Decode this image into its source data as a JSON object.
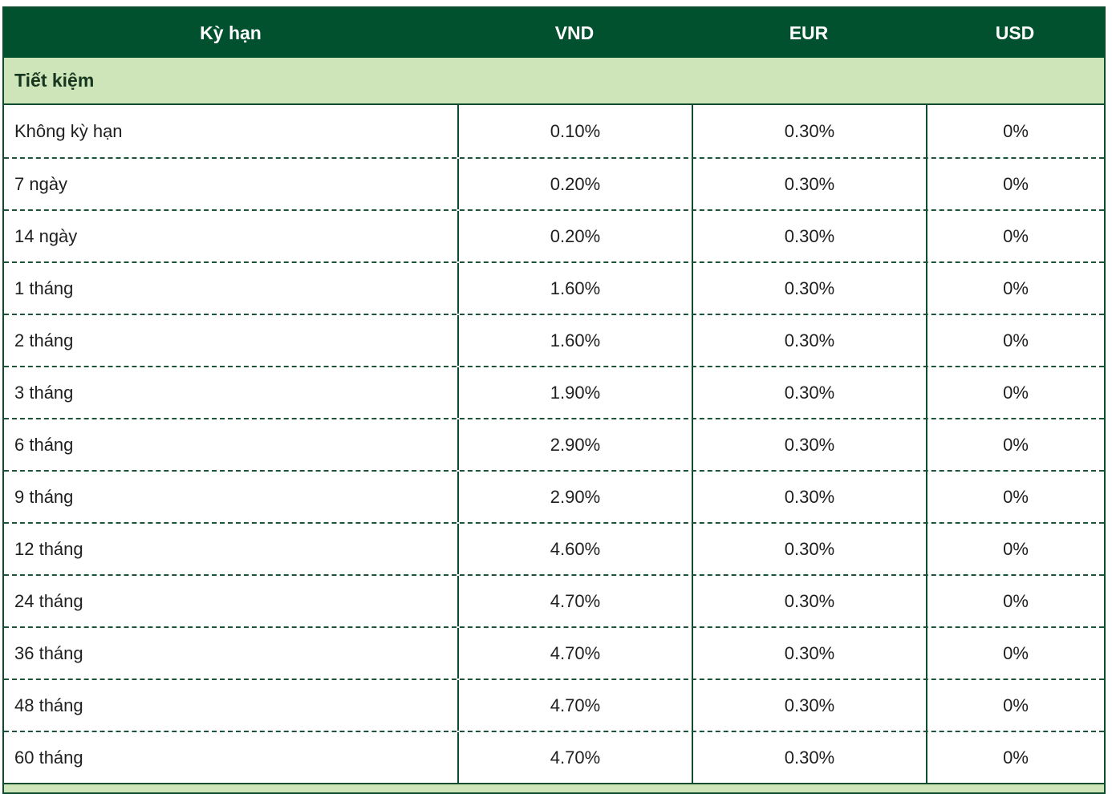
{
  "table": {
    "columns": [
      {
        "label": "Kỳ hạn"
      },
      {
        "label": "VND"
      },
      {
        "label": "EUR"
      },
      {
        "label": "USD"
      }
    ],
    "section": {
      "label": "Tiết kiệm"
    },
    "rows": [
      {
        "term": "Không kỳ hạn",
        "vnd": "0.10%",
        "eur": "0.30%",
        "usd": "0%"
      },
      {
        "term": "7 ngày",
        "vnd": "0.20%",
        "eur": "0.30%",
        "usd": "0%"
      },
      {
        "term": "14 ngày",
        "vnd": "0.20%",
        "eur": "0.30%",
        "usd": "0%"
      },
      {
        "term": "1 tháng",
        "vnd": "1.60%",
        "eur": "0.30%",
        "usd": "0%"
      },
      {
        "term": "2 tháng",
        "vnd": "1.60%",
        "eur": "0.30%",
        "usd": "0%"
      },
      {
        "term": "3 tháng",
        "vnd": "1.90%",
        "eur": "0.30%",
        "usd": "0%"
      },
      {
        "term": "6 tháng",
        "vnd": "2.90%",
        "eur": "0.30%",
        "usd": "0%"
      },
      {
        "term": "9 tháng",
        "vnd": "2.90%",
        "eur": "0.30%",
        "usd": "0%"
      },
      {
        "term": "12 tháng",
        "vnd": "4.60%",
        "eur": "0.30%",
        "usd": "0%"
      },
      {
        "term": "24 tháng",
        "vnd": "4.70%",
        "eur": "0.30%",
        "usd": "0%"
      },
      {
        "term": "36 tháng",
        "vnd": "4.70%",
        "eur": "0.30%",
        "usd": "0%"
      },
      {
        "term": "48 tháng",
        "vnd": "4.70%",
        "eur": "0.30%",
        "usd": "0%"
      },
      {
        "term": "60 tháng",
        "vnd": "4.70%",
        "eur": "0.30%",
        "usd": "0%"
      }
    ],
    "colors": {
      "header_bg": "#01512f",
      "header_text": "#ffffff",
      "section_bg": "#cde5b9",
      "section_text": "#17361f",
      "border": "#0e4c30",
      "dashed_border": "#1d5439",
      "body_text": "#1f1f1f"
    }
  }
}
